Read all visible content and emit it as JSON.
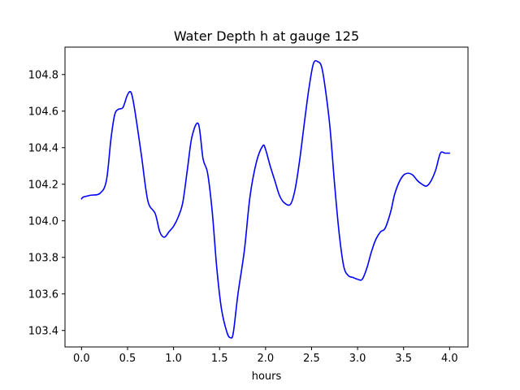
{
  "chart_data": {
    "type": "line",
    "title": "Water Depth h at gauge 125",
    "xlabel": "hours",
    "ylabel": "",
    "xlim": [
      -0.18,
      4.2
    ],
    "ylim": [
      103.31,
      104.95
    ],
    "x_ticks": [
      0.0,
      0.5,
      1.0,
      1.5,
      2.0,
      2.5,
      3.0,
      3.5,
      4.0
    ],
    "x_tick_labels": [
      "0.0",
      "0.5",
      "1.0",
      "1.5",
      "2.0",
      "2.5",
      "3.0",
      "3.5",
      "4.0"
    ],
    "y_ticks": [
      103.4,
      103.6,
      103.8,
      104.0,
      104.2,
      104.4,
      104.6,
      104.8
    ],
    "y_tick_labels": [
      "103.4",
      "103.6",
      "103.8",
      "104.0",
      "104.2",
      "104.4",
      "104.6",
      "104.8"
    ],
    "grid": false,
    "series": [
      {
        "color": "#0000ff",
        "x": [
          0.0,
          0.02,
          0.1,
          0.2,
          0.27,
          0.32,
          0.36,
          0.4,
          0.45,
          0.5,
          0.54,
          0.58,
          0.65,
          0.72,
          0.8,
          0.85,
          0.9,
          0.95,
          1.0,
          1.05,
          1.1,
          1.15,
          1.2,
          1.27,
          1.32,
          1.37,
          1.42,
          1.47,
          1.52,
          1.58,
          1.62,
          1.65,
          1.7,
          1.77,
          1.83,
          1.9,
          1.97,
          2.0,
          2.05,
          2.1,
          2.15,
          2.2,
          2.27,
          2.32,
          2.37,
          2.42,
          2.47,
          2.52,
          2.57,
          2.61,
          2.65,
          2.7,
          2.75,
          2.8,
          2.85,
          2.9,
          2.95,
          3.0,
          3.05,
          3.1,
          3.15,
          3.2,
          3.25,
          3.3,
          3.36,
          3.4,
          3.45,
          3.5,
          3.55,
          3.6,
          3.65,
          3.7,
          3.75,
          3.8,
          3.85,
          3.9,
          3.95,
          4.0
        ],
        "y": [
          104.12,
          104.13,
          104.14,
          104.15,
          104.22,
          104.45,
          104.58,
          104.61,
          104.62,
          104.69,
          104.7,
          104.6,
          104.36,
          104.11,
          104.04,
          103.94,
          103.91,
          103.94,
          103.97,
          104.02,
          104.1,
          104.28,
          104.46,
          104.53,
          104.34,
          104.26,
          104.05,
          103.74,
          103.52,
          103.39,
          103.36,
          103.39,
          103.6,
          103.84,
          104.13,
          104.32,
          104.41,
          104.39,
          104.3,
          104.22,
          104.14,
          104.1,
          104.09,
          104.17,
          104.33,
          104.53,
          104.72,
          104.86,
          104.87,
          104.84,
          104.72,
          104.51,
          104.2,
          103.93,
          103.75,
          103.7,
          103.69,
          103.68,
          103.68,
          103.74,
          103.83,
          103.9,
          103.94,
          103.96,
          104.05,
          104.14,
          104.21,
          104.25,
          104.26,
          104.25,
          104.22,
          104.2,
          104.19,
          104.22,
          104.28,
          104.37,
          104.37,
          104.37
        ]
      }
    ]
  }
}
